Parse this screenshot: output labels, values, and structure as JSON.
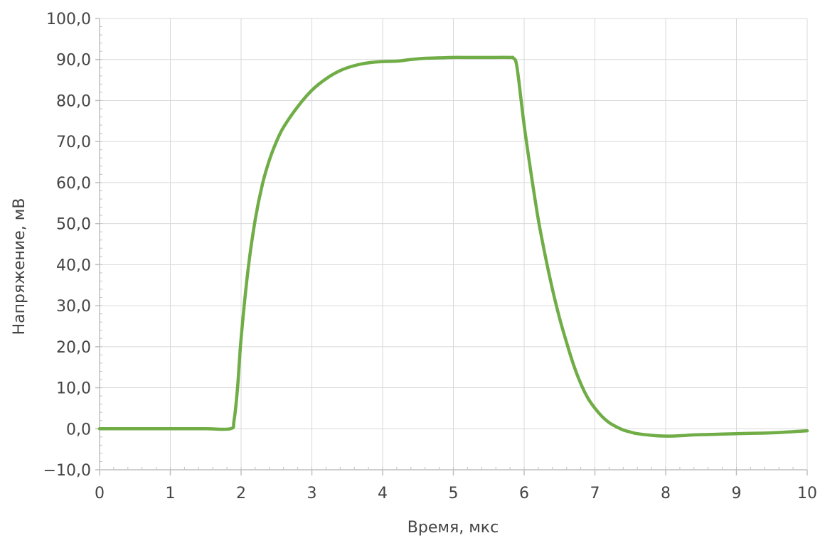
{
  "chart_data": {
    "type": "line",
    "title": "",
    "xlabel": "Время, мкс",
    "ylabel": "Напряжение, мВ",
    "xlim": [
      0,
      10
    ],
    "ylim": [
      -10,
      100
    ],
    "x_ticks": [
      0,
      1,
      2,
      3,
      4,
      5,
      6,
      7,
      8,
      9,
      10
    ],
    "x_tick_labels": [
      "0",
      "1",
      "2",
      "3",
      "4",
      "5",
      "6",
      "7",
      "8",
      "9",
      "10"
    ],
    "y_ticks": [
      -10,
      0,
      10,
      20,
      30,
      40,
      50,
      60,
      70,
      80,
      90,
      100
    ],
    "y_tick_labels": [
      "−10,0",
      "0,0",
      "10,0",
      "20,0",
      "30,0",
      "40,0",
      "50,0",
      "60,0",
      "70,0",
      "80,0",
      "90,0",
      "100,0"
    ],
    "grid": true,
    "legend": "none",
    "series": [
      {
        "color": "#70ad47",
        "x": [
          0,
          0.5,
          1.0,
          1.5,
          1.85,
          1.9,
          1.95,
          2.0,
          2.1,
          2.2,
          2.3,
          2.4,
          2.5,
          2.6,
          2.8,
          3.0,
          3.2,
          3.4,
          3.6,
          3.8,
          4.0,
          4.2,
          4.4,
          4.6,
          4.8,
          5.0,
          5.2,
          5.4,
          5.6,
          5.8,
          5.85,
          5.9,
          6.0,
          6.1,
          6.2,
          6.3,
          6.4,
          6.5,
          6.6,
          6.7,
          6.8,
          6.9,
          7.0,
          7.1,
          7.2,
          7.3,
          7.4,
          7.5,
          7.6,
          7.8,
          8.0,
          8.2,
          8.4,
          8.6,
          8.8,
          9.0,
          9.5,
          10.0
        ],
        "y": [
          0.0,
          0.0,
          0.0,
          0.0,
          0.0,
          2.0,
          10.0,
          22.0,
          39.0,
          51.0,
          59.5,
          65.5,
          70.0,
          73.5,
          78.5,
          82.5,
          85.3,
          87.3,
          88.5,
          89.2,
          89.5,
          89.6,
          90.0,
          90.3,
          90.4,
          90.5,
          90.5,
          90.5,
          90.5,
          90.5,
          90.3,
          88.0,
          74.0,
          62.0,
          51.0,
          42.0,
          34.0,
          27.0,
          21.0,
          15.5,
          11.0,
          7.5,
          5.0,
          3.0,
          1.5,
          0.5,
          -0.3,
          -0.8,
          -1.2,
          -1.6,
          -1.8,
          -1.7,
          -1.5,
          -1.4,
          -1.3,
          -1.2,
          -1.0,
          -0.5
        ]
      }
    ]
  }
}
